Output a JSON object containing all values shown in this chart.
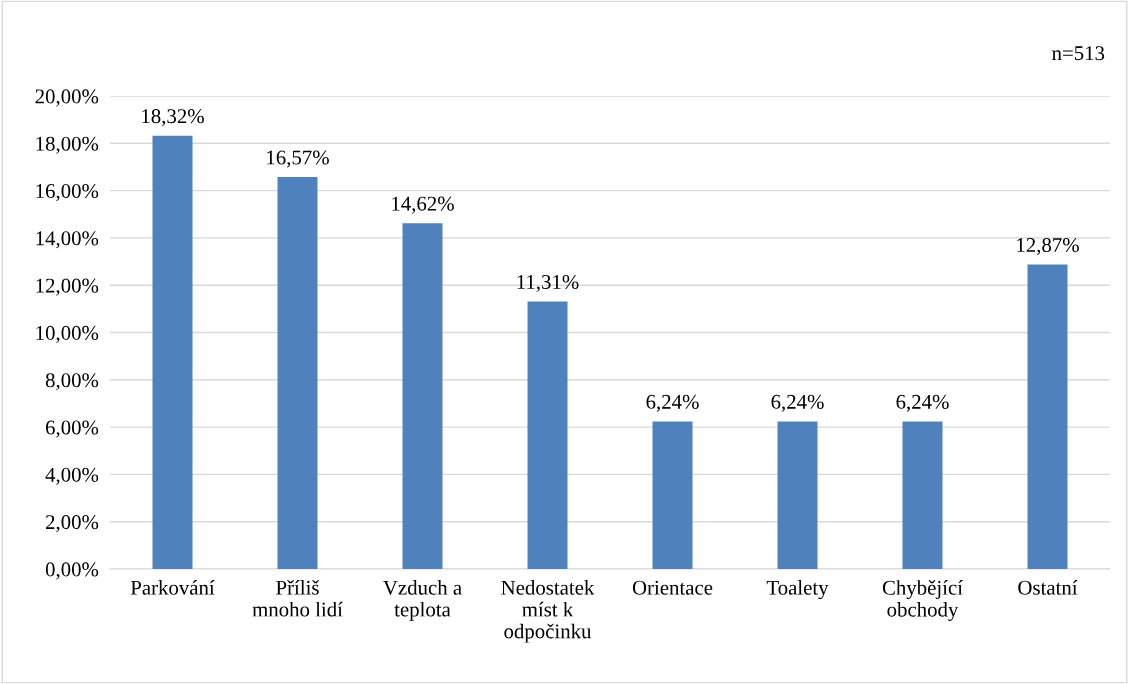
{
  "chart_data": {
    "type": "bar",
    "categories": [
      "Parkování",
      "Příliš\nmnoho lidí",
      "Vzduch a\nteplota",
      "Nedostatek\nmíst k\nodpočinku",
      "Orientace",
      "Toalety",
      "Chybějící\nobchody",
      "Ostatní"
    ],
    "values": [
      18.32,
      16.57,
      14.62,
      11.31,
      6.24,
      6.24,
      6.24,
      12.87
    ],
    "value_labels": [
      "18,32%",
      "16,57%",
      "14,62%",
      "11,31%",
      "6,24%",
      "6,24%",
      "6,24%",
      "12,87%"
    ],
    "color": "#4f81bd",
    "ylim": [
      0,
      20
    ],
    "yticks": [
      {
        "value": 0,
        "label": "0,00%"
      },
      {
        "value": 2,
        "label": "2,00%"
      },
      {
        "value": 4,
        "label": "4,00%"
      },
      {
        "value": 6,
        "label": "6,00%"
      },
      {
        "value": 8,
        "label": "8,00%"
      },
      {
        "value": 10,
        "label": "10,00%"
      },
      {
        "value": 12,
        "label": "12,00%"
      },
      {
        "value": 14,
        "label": "14,00%"
      },
      {
        "value": 16,
        "label": "16,00%"
      },
      {
        "value": 18,
        "label": "18,00%"
      },
      {
        "value": 20,
        "label": "20,00%"
      }
    ],
    "grid": "y",
    "annotations": [
      "n=513"
    ]
  }
}
